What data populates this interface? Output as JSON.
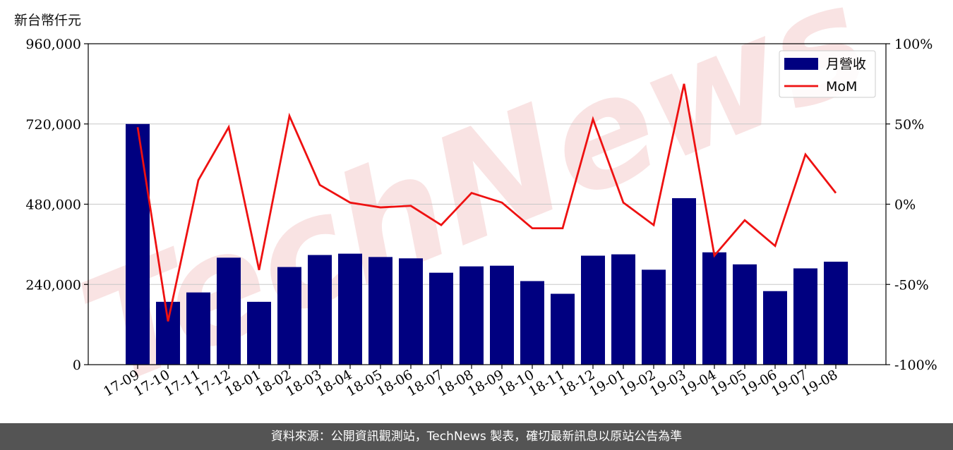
{
  "unit_label": "新台幣仟元",
  "footer_text": "資料來源：公開資訊觀測站，TechNews 製表，確切最新訊息以原站公告為準",
  "watermark": "TechNews",
  "chart_data": {
    "type": "bar",
    "categories": [
      "17-09",
      "17-10",
      "17-11",
      "17-12",
      "18-01",
      "18-02",
      "18-03",
      "18-04",
      "18-05",
      "18-06",
      "18-07",
      "18-08",
      "18-09",
      "18-10",
      "18-11",
      "18-12",
      "19-01",
      "19-02",
      "19-03",
      "19-04",
      "19-05",
      "19-06",
      "19-07",
      "19-08"
    ],
    "series": [
      {
        "name": "月營收",
        "type": "bar",
        "axis": "left",
        "color": "#000080",
        "values": [
          720000,
          188000,
          216000,
          320000,
          188000,
          292000,
          328000,
          332000,
          322000,
          318000,
          275000,
          294000,
          296000,
          250000,
          212000,
          326000,
          330000,
          284000,
          498000,
          336000,
          300000,
          220000,
          288000,
          308000
        ]
      },
      {
        "name": "MoM",
        "type": "line",
        "axis": "right",
        "color": "#ee1111",
        "values": [
          48,
          -73,
          15,
          48,
          -41,
          55,
          12,
          1,
          -2,
          -1,
          -13,
          7,
          1,
          -15,
          -15,
          53,
          1,
          -13,
          75,
          -32,
          -10,
          -26,
          31,
          7
        ]
      }
    ],
    "y_left": {
      "min": 0,
      "max": 960000,
      "ticks": [
        "0",
        "240,000",
        "480,000",
        "720,000",
        "960,000"
      ],
      "tick_values": [
        0,
        240000,
        480000,
        720000,
        960000
      ]
    },
    "y_right": {
      "min": -100,
      "max": 100,
      "ticks": [
        "-100%",
        "-50%",
        "0%",
        "50%",
        "100%"
      ],
      "tick_values": [
        -100,
        -50,
        0,
        50,
        100
      ]
    },
    "grid": true,
    "legend_position": "top-right"
  }
}
